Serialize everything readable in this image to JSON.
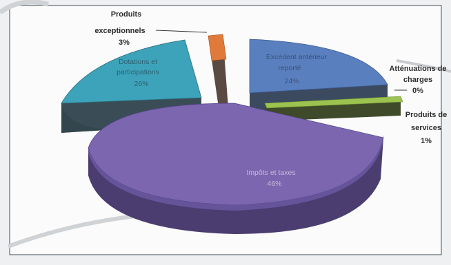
{
  "chart_data": {
    "type": "pie",
    "style": "3d-exploded",
    "title": "",
    "slices": [
      {
        "name": "Produits exceptionnels",
        "value": 3,
        "label": "3%",
        "color": "#e07a3a"
      },
      {
        "name": "Excédent antérieur reporté",
        "value": 24,
        "label": "24%",
        "color": "#5a7fbf"
      },
      {
        "name": "Atténuations de charges",
        "value": 0,
        "label": "0%",
        "color": "#c9c9c9"
      },
      {
        "name": "Produits de services",
        "value": 1,
        "label": "1%",
        "color": "#9cc24f"
      },
      {
        "name": "Impôts et taxes",
        "value": 46,
        "label": "46%",
        "color": "#7d66b0"
      },
      {
        "name": "Dotations et participations",
        "value": 26,
        "label": "26%",
        "color": "#3da3ba"
      }
    ]
  },
  "labels": {
    "produits_exceptionnels_name": "Produits exceptionnels",
    "produits_exceptionnels_line1": "Produits",
    "produits_exceptionnels_line2": "exceptionnels",
    "produits_exceptionnels_pct": "3%",
    "excedent_line1": "Excédent antérieur",
    "excedent_line2": "reporté",
    "excedent_pct": "24%",
    "attenuations_line1": "Atténuations de",
    "attenuations_line2": "charges",
    "attenuations_pct": "0%",
    "produits_services_line1": "Produits de",
    "produits_services_line2": "services",
    "produits_services_pct": "1%",
    "impots_line1": "Impôts et taxes",
    "impots_pct": "46%",
    "dotations_line1": "Dotations et",
    "dotations_line2": "participations",
    "dotations_pct": "26%"
  }
}
